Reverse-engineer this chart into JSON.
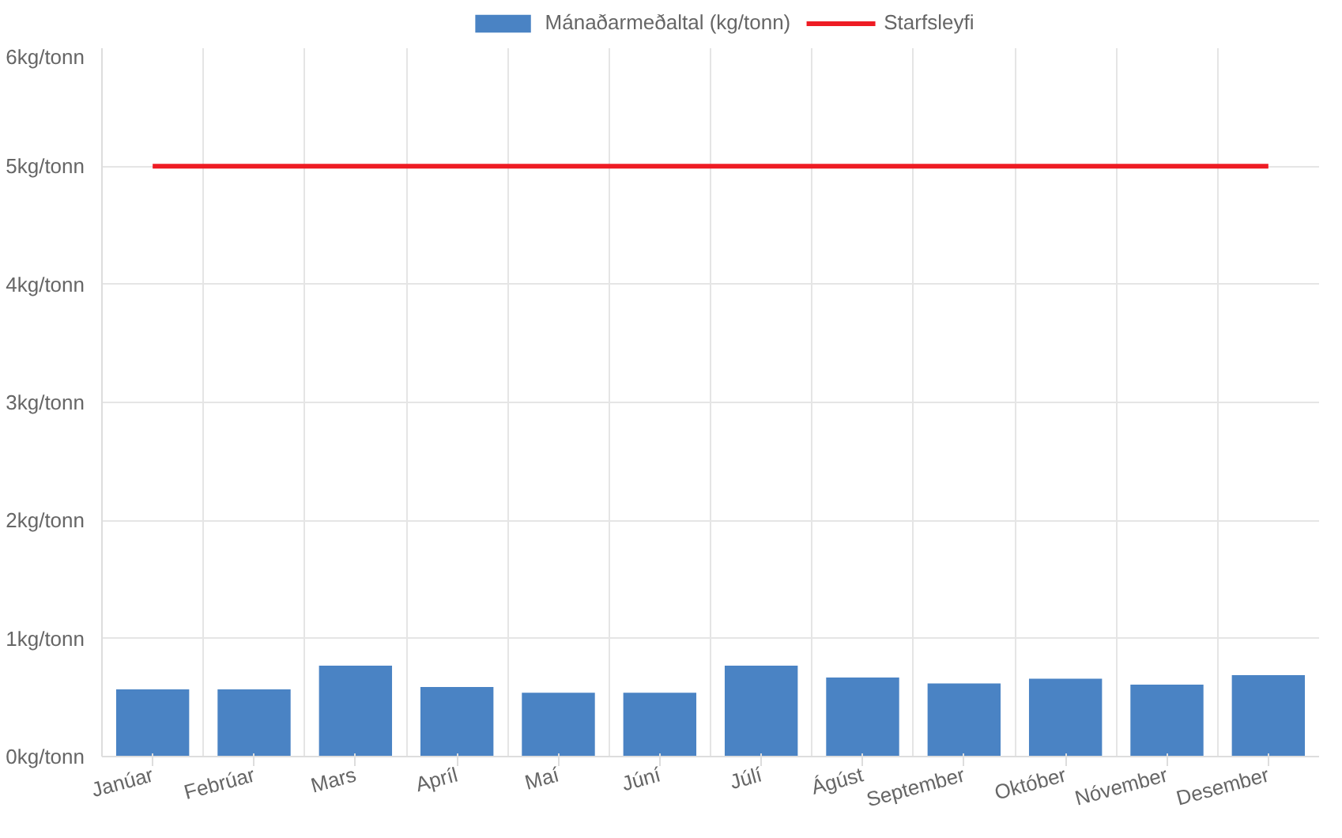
{
  "chart_data": {
    "type": "bar",
    "categories": [
      "Janúar",
      "Febrúar",
      "Mars",
      "Apríl",
      "Maí",
      "Júní",
      "Júlí",
      "Ágúst",
      "September",
      "Október",
      "Nóvember",
      "Desember"
    ],
    "series": [
      {
        "name": "Mánaðarmeðaltal (kg/tonn)",
        "color": "#4a83c4",
        "values": [
          0.57,
          0.57,
          0.77,
          0.59,
          0.54,
          0.54,
          0.77,
          0.67,
          0.62,
          0.66,
          0.61,
          0.69
        ]
      },
      {
        "name": "Starfsleyfi",
        "type": "line",
        "color": "#ee1c24",
        "values": [
          5,
          5,
          5,
          5,
          5,
          5,
          5,
          5,
          5,
          5,
          5,
          5
        ]
      }
    ],
    "ylim": [
      0,
      6
    ],
    "yticks": [
      {
        "value": 0,
        "label": "0kg/tonn"
      },
      {
        "value": 1,
        "label": "1kg/tonn"
      },
      {
        "value": 2,
        "label": "2kg/tonn"
      },
      {
        "value": 3,
        "label": "3kg/tonn"
      },
      {
        "value": 4,
        "label": "4kg/tonn"
      },
      {
        "value": 5,
        "label": "5kg/tonn"
      },
      {
        "value": 6,
        "label": "6kg/tonn"
      }
    ],
    "grid": true,
    "legend": "top"
  }
}
